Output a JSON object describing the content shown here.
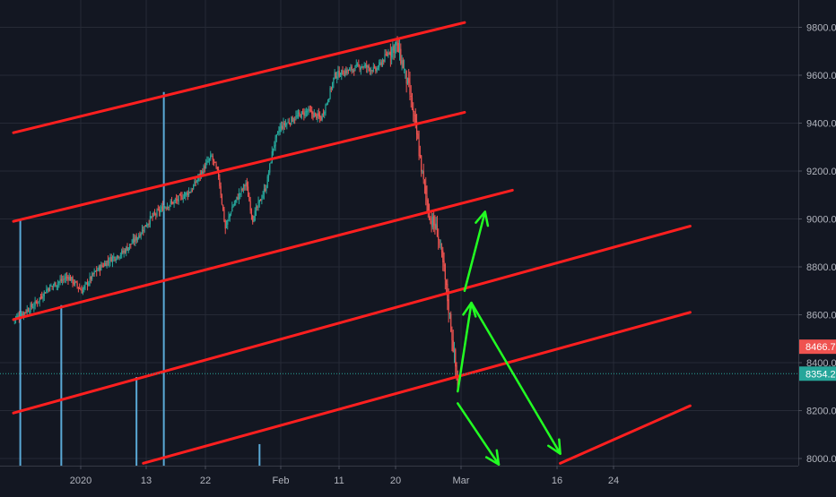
{
  "colors": {
    "background": "#131722",
    "grid": "#262a36",
    "axis_text": "#b2b5be",
    "up": "#26a69a",
    "down": "#ef5350",
    "channel": "#ff1f1f",
    "arrow": "#22ff22",
    "volume": "#5aa9d6",
    "last_price": "#26a69a",
    "prev_price": "#ef5350"
  },
  "chart_data": {
    "type": "candlestick",
    "title": "",
    "ylim": [
      7980,
      9880
    ],
    "y_ticks": [
      "8000.0",
      "8200.0",
      "8400.0",
      "8600.0",
      "8800.0",
      "9000.0",
      "9200.0",
      "9400.0",
      "9600.0",
      "9800.0"
    ],
    "x_ticks": [
      "2020",
      "13",
      "22",
      "Feb",
      "11",
      "20",
      "Mar",
      "16",
      "24"
    ],
    "grid": true,
    "price_labels": [
      {
        "label": "8466.7",
        "value": 8466.7,
        "role": "prev"
      },
      {
        "label": "8354.2",
        "value": 8354.2,
        "role": "last"
      }
    ],
    "close_path": [
      [
        "2020-12-26",
        8580
      ],
      [
        "2020-12-29",
        8640
      ],
      [
        "2020-12-31",
        8710
      ],
      [
        "2021-01-03",
        8760
      ],
      [
        "2021-01-05",
        8700
      ],
      [
        "2021-01-07",
        8780
      ],
      [
        "2021-01-09",
        8830
      ],
      [
        "2021-01-11",
        8860
      ],
      [
        "2021-01-13",
        8920
      ],
      [
        "2021-01-15",
        9000
      ],
      [
        "2021-01-17",
        9050
      ],
      [
        "2021-01-19",
        9080
      ],
      [
        "2021-01-21",
        9120
      ],
      [
        "2021-01-23",
        9220
      ],
      [
        "2021-01-24",
        9260
      ],
      [
        "2021-01-25",
        9180
      ],
      [
        "2021-01-26",
        8960
      ],
      [
        "2021-01-27",
        9050
      ],
      [
        "2021-01-28",
        9100
      ],
      [
        "2021-01-29",
        9150
      ],
      [
        "2021-01-30",
        9000
      ],
      [
        "2021-02-01",
        9140
      ],
      [
        "2021-02-02",
        9300
      ],
      [
        "2021-02-03",
        9380
      ],
      [
        "2021-02-05",
        9420
      ],
      [
        "2021-02-07",
        9450
      ],
      [
        "2021-02-09",
        9420
      ],
      [
        "2021-02-10",
        9500
      ],
      [
        "2021-02-11",
        9600
      ],
      [
        "2021-02-13",
        9620
      ],
      [
        "2021-02-15",
        9640
      ],
      [
        "2021-02-17",
        9620
      ],
      [
        "2021-02-19",
        9700
      ],
      [
        "2021-02-20",
        9730
      ],
      [
        "2021-02-21",
        9640
      ],
      [
        "2021-02-22",
        9520
      ],
      [
        "2021-02-23",
        9350
      ],
      [
        "2021-02-24",
        9150
      ],
      [
        "2021-02-25",
        9000
      ],
      [
        "2021-02-26",
        8950
      ],
      [
        "2021-02-27",
        8780
      ],
      [
        "2021-02-28",
        8550
      ],
      [
        "2021-02-29",
        8300
      ],
      [
        "2021-03-01",
        8354
      ]
    ],
    "channel_lines": [
      {
        "from": [
          "2020-12-26",
          9360
        ],
        "to": [
          "2021-03-02",
          9820
        ]
      },
      {
        "from": [
          "2020-12-26",
          8990
        ],
        "to": [
          "2021-03-02",
          9445
        ]
      },
      {
        "from": [
          "2020-12-26",
          8580
        ],
        "to": [
          "2021-03-09",
          9120
        ]
      },
      {
        "from": [
          "2020-12-26",
          8190
        ],
        "to": [
          "2021-04-04",
          8970
        ]
      },
      {
        "from": [
          "2021-01-14",
          7980
        ],
        "to": [
          "2021-04-04",
          8610
        ]
      },
      {
        "from": [
          "2021-03-16",
          7980
        ],
        "to": [
          "2021-04-04",
          8220
        ]
      }
    ],
    "arrows": [
      {
        "from": [
          "2021-03-02",
          8700
        ],
        "to": [
          "2021-03-05",
          9030
        ]
      },
      {
        "from": [
          "2021-03-01",
          8280
        ],
        "to": [
          "2021-03-03",
          8650
        ]
      },
      {
        "from": [
          "2021-03-03",
          8650
        ],
        "to": [
          "2021-03-16",
          8020
        ]
      },
      {
        "from": [
          "2021-03-01",
          8230
        ],
        "to": [
          "2021-03-07",
          7975
        ]
      }
    ],
    "volume_spikes": [
      {
        "date": "2020-12-27",
        "top": 9000
      },
      {
        "date": "2021-01-02",
        "top": 8640
      },
      {
        "date": "2021-01-13",
        "top": 8340
      },
      {
        "date": "2021-01-17",
        "top": 9530
      },
      {
        "date": "2021-01-31",
        "top": 8060
      }
    ]
  }
}
